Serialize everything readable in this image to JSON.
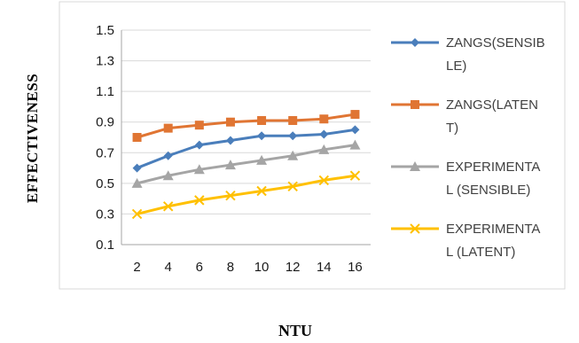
{
  "chart_data": {
    "type": "line",
    "xlabel": "NTU",
    "ylabel": "EFFECTIVENESS",
    "categories": [
      "2",
      "4",
      "6",
      "8",
      "10",
      "12",
      "14",
      "16"
    ],
    "x": [
      2,
      4,
      6,
      8,
      10,
      12,
      14,
      16
    ],
    "ylim": [
      0.1,
      1.5
    ],
    "yticks": [
      "0.1",
      "0.3",
      "0.5",
      "0.7",
      "0.9",
      "1.1",
      "1.3",
      "1.5"
    ],
    "grid": true,
    "legend_position": "right",
    "series": [
      {
        "name": "ZANGS(SENSIBLE)",
        "legend_lines": [
          "ZANGS(SENSIB",
          "LE)"
        ],
        "values": [
          0.6,
          0.68,
          0.75,
          0.78,
          0.81,
          0.81,
          0.82,
          0.85
        ],
        "color": "#4a7ebb",
        "marker": "diamond"
      },
      {
        "name": "ZANGS(LATENT)",
        "legend_lines": [
          "ZANGS(LATEN",
          "T)"
        ],
        "values": [
          0.8,
          0.86,
          0.88,
          0.9,
          0.91,
          0.91,
          0.92,
          0.95
        ],
        "color": "#e07533",
        "marker": "square"
      },
      {
        "name": "EXPERIMENTAL (SENSIBLE)",
        "legend_lines": [
          "EXPERIMENTA",
          "L (SENSIBLE)"
        ],
        "values": [
          0.5,
          0.55,
          0.59,
          0.62,
          0.65,
          0.68,
          0.72,
          0.75
        ],
        "color": "#a5a5a5",
        "marker": "triangle"
      },
      {
        "name": "EXPERIMENTAL (LATENT)",
        "legend_lines": [
          "EXPERIMENTA",
          "L (LATENT)"
        ],
        "values": [
          0.3,
          0.35,
          0.39,
          0.42,
          0.45,
          0.48,
          0.52,
          0.55
        ],
        "color": "#ffc000",
        "marker": "cross"
      }
    ]
  }
}
